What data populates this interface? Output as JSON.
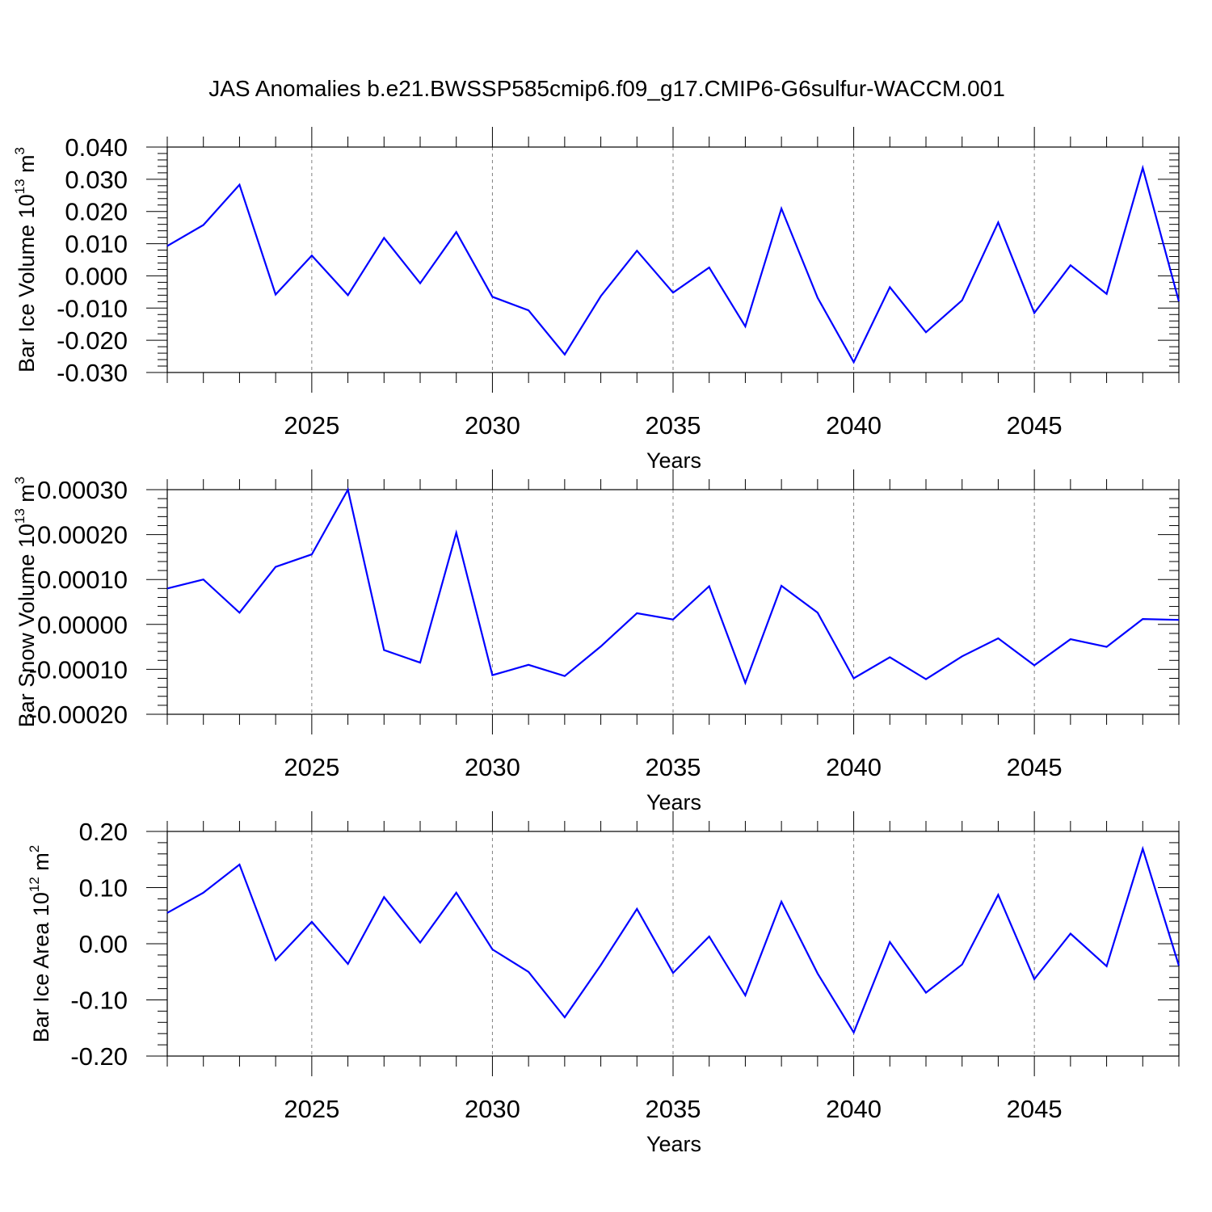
{
  "title": "JAS Anomalies b.e21.BWSSP585cmip6.f09_g17.CMIP6-G6sulfur-WACCM.001",
  "colors": {
    "line": "#0000ff",
    "axis": "#000000",
    "grid": "#808080"
  },
  "chart_data": [
    {
      "type": "line",
      "ylabel": {
        "text": "Bar Ice Volume 10",
        "exp": "13",
        "unit": " m",
        "unit_exp": "3"
      },
      "xlabel": "Years",
      "xlim": [
        2021,
        2049
      ],
      "ylim": [
        -0.03,
        0.04
      ],
      "yticks": [
        -0.03,
        -0.02,
        -0.01,
        0.0,
        0.01,
        0.02,
        0.03,
        0.04
      ],
      "yticklabels": [
        "-0.030",
        "-0.020",
        "-0.010",
        "0.000",
        "0.010",
        "0.020",
        "0.030",
        "0.040"
      ],
      "xticks": [
        2025,
        2030,
        2035,
        2040,
        2045
      ],
      "xticklabels": [
        "2025",
        "2030",
        "2035",
        "2040",
        "2045"
      ],
      "x": [
        2021,
        2022,
        2023,
        2024,
        2025,
        2026,
        2027,
        2028,
        2029,
        2030,
        2031,
        2032,
        2033,
        2034,
        2035,
        2036,
        2037,
        2038,
        2039,
        2040,
        2041,
        2042,
        2043,
        2044,
        2045,
        2046,
        2047,
        2048,
        2049
      ],
      "values": [
        0.0093,
        0.0158,
        0.0283,
        -0.0058,
        0.0063,
        -0.006,
        0.0118,
        -0.0023,
        0.0136,
        -0.0065,
        -0.0107,
        -0.0244,
        -0.0063,
        0.0078,
        -0.0052,
        0.0026,
        -0.0157,
        0.0209,
        -0.0068,
        -0.0268,
        -0.0035,
        -0.0175,
        -0.0076,
        0.0166,
        -0.0115,
        0.0033,
        -0.0056,
        0.0335,
        -0.0079
      ]
    },
    {
      "type": "line",
      "ylabel": {
        "text": "Bar Snow Volume 10",
        "exp": "13",
        "unit": " m",
        "unit_exp": "3"
      },
      "xlabel": "Years",
      "xlim": [
        2021,
        2049
      ],
      "ylim": [
        -0.0002,
        0.0003
      ],
      "yticks": [
        -0.0002,
        -0.0001,
        0.0,
        0.0001,
        0.0002,
        0.0003
      ],
      "yticklabels": [
        "-0.00020",
        "-0.00010",
        "0.00000",
        "0.00010",
        "0.00020",
        "0.00030"
      ],
      "xticks": [
        2025,
        2030,
        2035,
        2040,
        2045
      ],
      "xticklabels": [
        "2025",
        "2030",
        "2035",
        "2040",
        "2045"
      ],
      "x": [
        2021,
        2022,
        2023,
        2024,
        2025,
        2026,
        2027,
        2028,
        2029,
        2030,
        2031,
        2032,
        2033,
        2034,
        2035,
        2036,
        2037,
        2038,
        2039,
        2040,
        2041,
        2042,
        2043,
        2044,
        2045,
        2046,
        2047,
        2048,
        2049
      ],
      "values": [
        8e-05,
        0.0001,
        2.6e-05,
        0.000128,
        0.000156,
        0.0003,
        -5.7e-05,
        -8.5e-05,
        0.000204,
        -0.000113,
        -9e-05,
        -0.000115,
        -4.9e-05,
        2.5e-05,
        1.1e-05,
        8.5e-05,
        -0.00013,
        8.6e-05,
        2.6e-05,
        -0.00012,
        -7.3e-05,
        -0.000122,
        -7.1e-05,
        -3.1e-05,
        -9.1e-05,
        -3.3e-05,
        -5e-05,
        1.2e-05,
        1e-05
      ]
    },
    {
      "type": "line",
      "ylabel": {
        "text": "Bar Ice Area 10",
        "exp": "12",
        "unit": " m",
        "unit_exp": "2"
      },
      "xlabel": "Years",
      "xlim": [
        2021,
        2049
      ],
      "ylim": [
        -0.2,
        0.2
      ],
      "yticks": [
        -0.2,
        -0.1,
        0.0,
        0.1,
        0.2
      ],
      "yticklabels": [
        "-0.20",
        "-0.10",
        "0.00",
        "0.10",
        "0.20"
      ],
      "xticks": [
        2025,
        2030,
        2035,
        2040,
        2045
      ],
      "xticklabels": [
        "2025",
        "2030",
        "2035",
        "2040",
        "2045"
      ],
      "x": [
        2021,
        2022,
        2023,
        2024,
        2025,
        2026,
        2027,
        2028,
        2029,
        2030,
        2031,
        2032,
        2033,
        2034,
        2035,
        2036,
        2037,
        2038,
        2039,
        2040,
        2041,
        2042,
        2043,
        2044,
        2045,
        2046,
        2047,
        2048,
        2049
      ],
      "values": [
        0.055,
        0.091,
        0.141,
        -0.029,
        0.039,
        -0.036,
        0.083,
        0.002,
        0.091,
        -0.01,
        -0.05,
        -0.131,
        -0.038,
        0.062,
        -0.052,
        0.013,
        -0.092,
        0.075,
        -0.053,
        -0.158,
        0.003,
        -0.087,
        -0.037,
        0.087,
        -0.063,
        0.018,
        -0.04,
        0.169,
        -0.039
      ]
    }
  ]
}
